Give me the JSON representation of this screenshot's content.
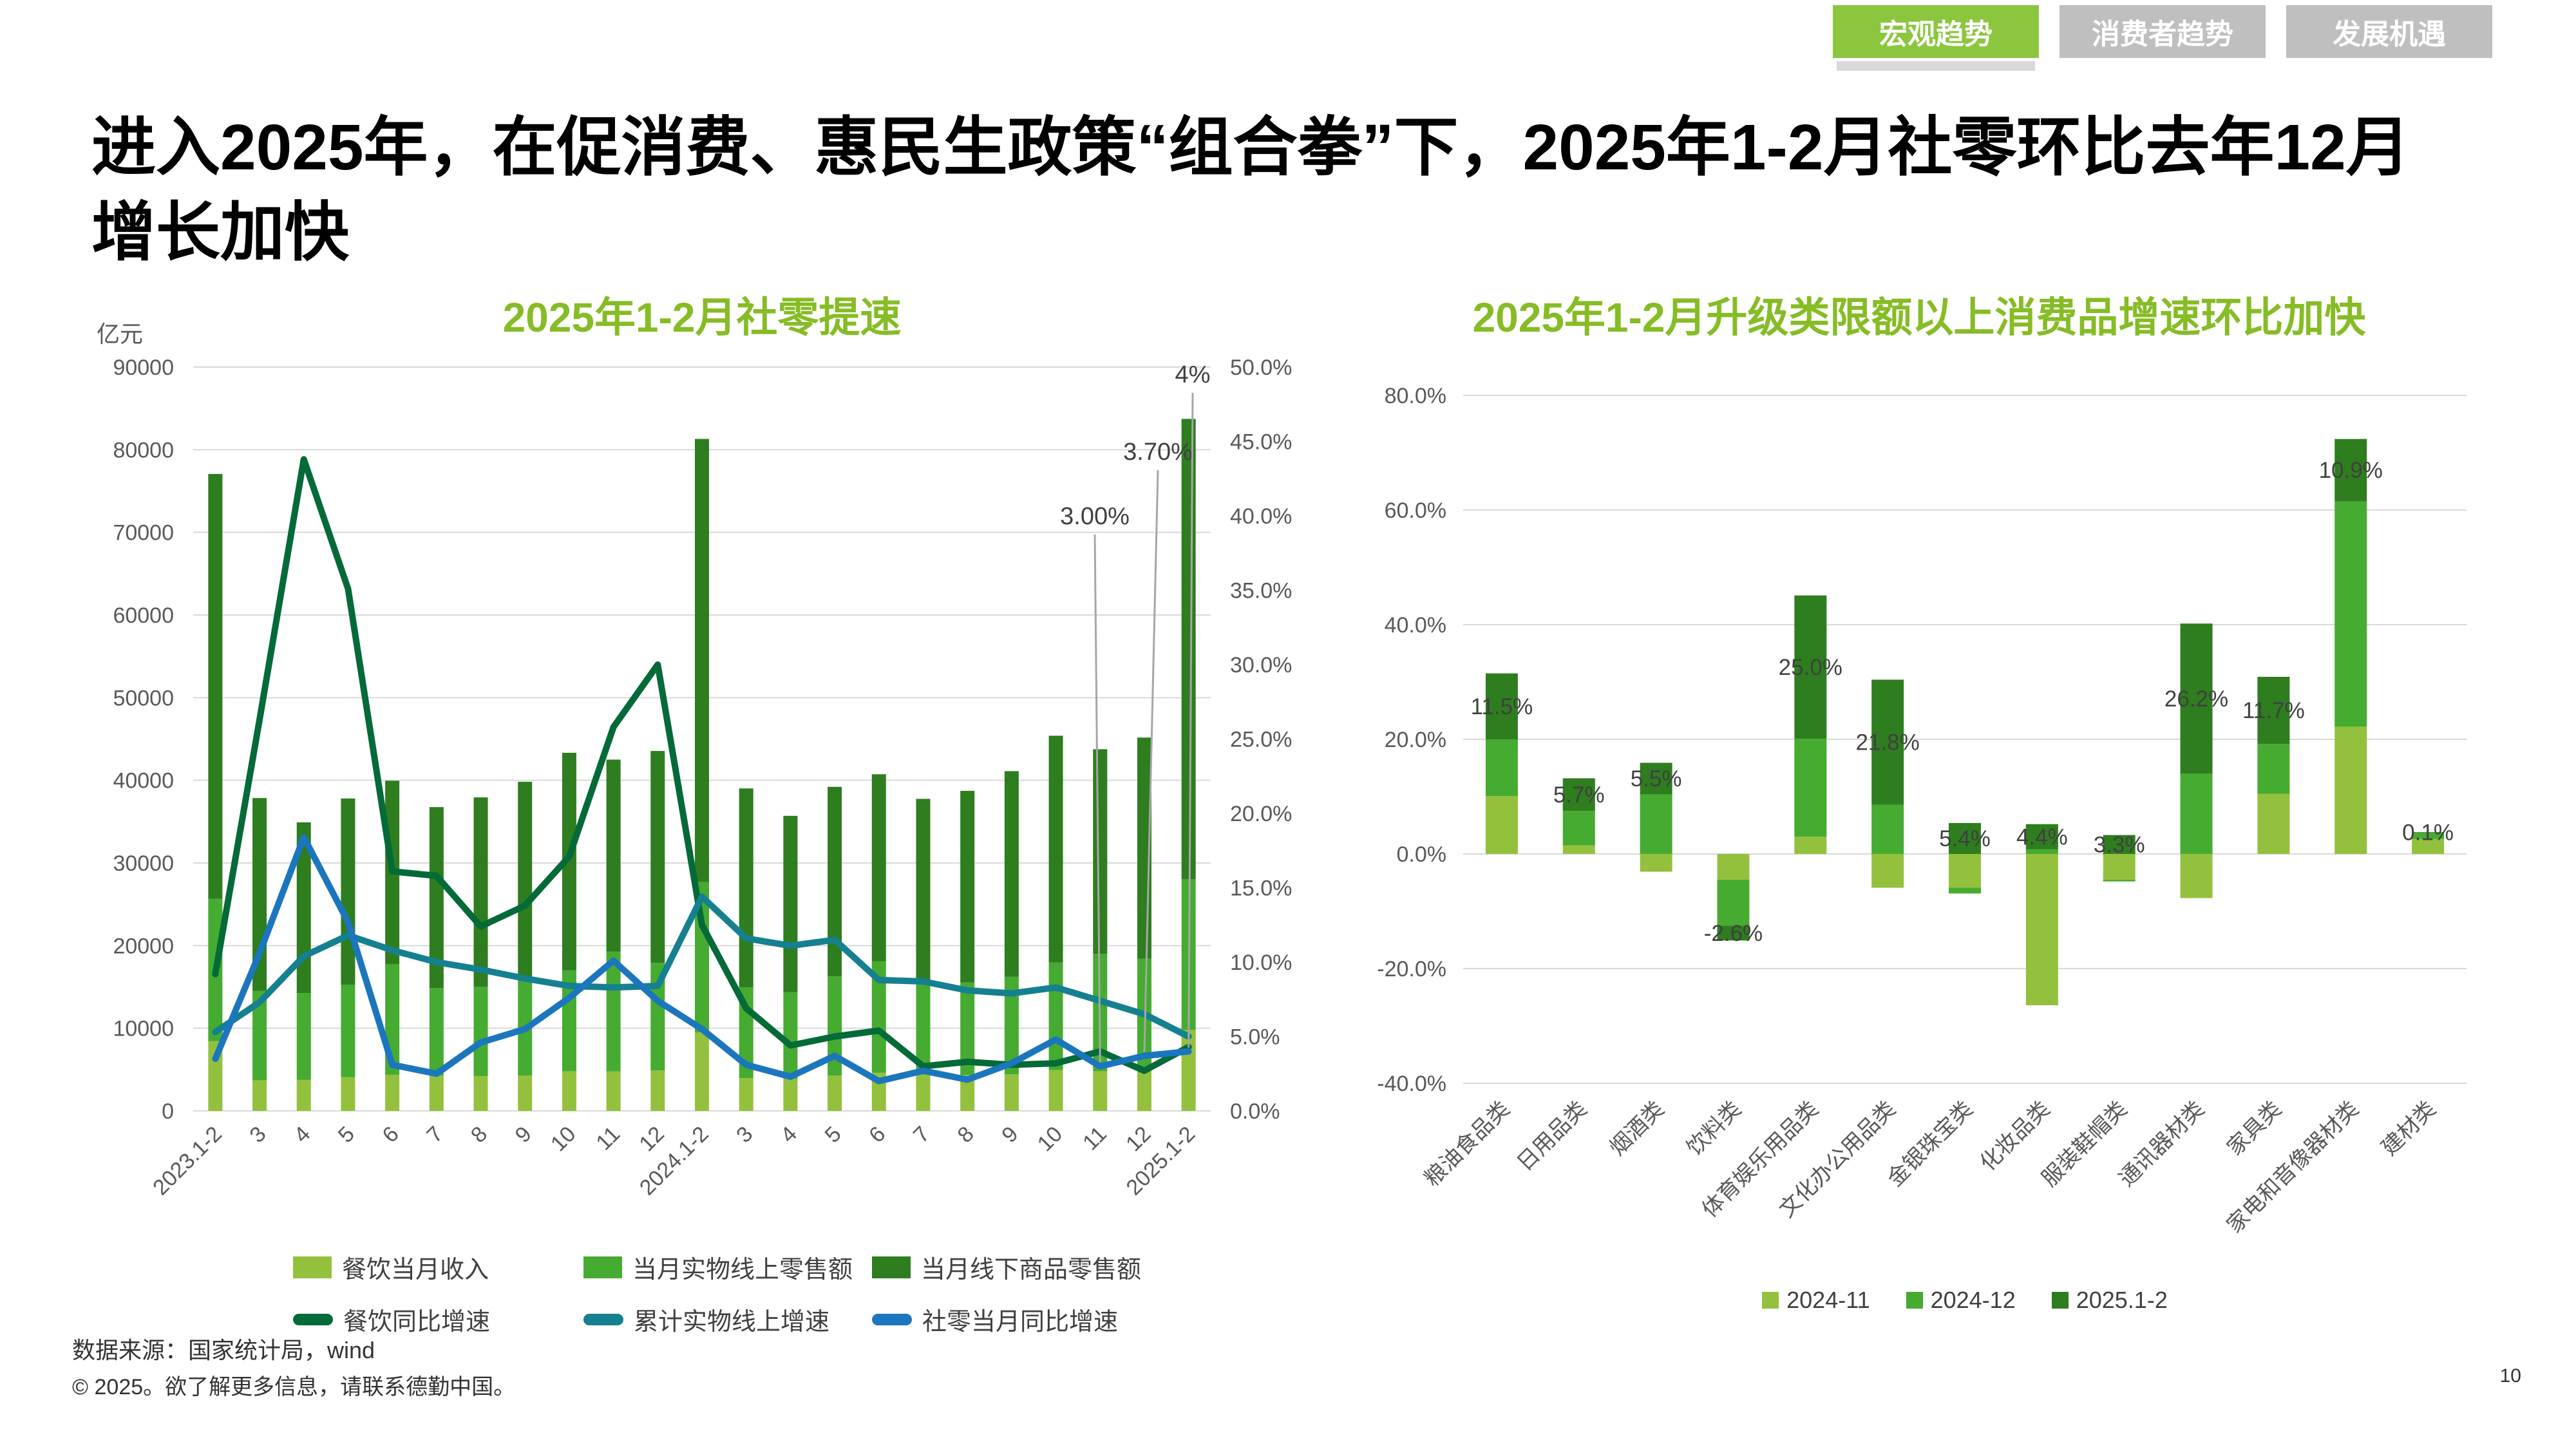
{
  "page_title": "进入2025年，在促消费、惠民生政策“组合拳”下，2025年1-2月社零环比去年12月增长加快",
  "tabs": [
    {
      "label": "宏观趋势",
      "active": true
    },
    {
      "label": "消费者趋势",
      "active": false
    },
    {
      "label": "发展机遇",
      "active": false
    }
  ],
  "footer": {
    "source": "数据来源：国家统计局，wind",
    "copyright": "© 2025。欲了解更多信息，请联系德勤中国。",
    "page_number": "10"
  },
  "colors": {
    "tab_active_bg": "#8CC63F",
    "tab_inactive_bg": "#BFBFBF",
    "tab_text": "#FFFFFF",
    "chart_title_green": "#86BC25",
    "axis_text": "#595959",
    "label_text": "#404040",
    "gridline": "#D9D9D9",
    "leader_line": "#A6A6A6",
    "bar_light_green": "#93C13D",
    "bar_mid_green": "#46AB31",
    "bar_dark_green": "#2E7D1F",
    "line_deep_green": "#046A38",
    "line_teal": "#15808F",
    "line_blue": "#1B76BE"
  },
  "chart_data": [
    {
      "type": "bar-line-combo",
      "title": "2025年1-2月社零提速",
      "unit_label": "亿元",
      "categories": [
        "2023.1-2",
        "3",
        "4",
        "5",
        "6",
        "7",
        "8",
        "9",
        "10",
        "11",
        "12",
        "2024.1-2",
        "3",
        "4",
        "5",
        "6",
        "7",
        "8",
        "9",
        "10",
        "11",
        "12",
        "2025.1-2"
      ],
      "left_axis": {
        "min": 0,
        "max": 90000,
        "step": 10000
      },
      "right_axis": {
        "min": 0,
        "max": 50,
        "step": 5,
        "suffix": "%"
      },
      "bar_series": [
        {
          "name": "餐饮当月收入",
          "color": "bar_light_green",
          "values": [
            8429,
            3707,
            3751,
            4070,
            4371,
            4277,
            4212,
            4287,
            4800,
            4780,
            4898,
            9481,
            3964,
            3869,
            4274,
            4609,
            4403,
            4351,
            4420,
            4952,
            4802,
            5228,
            9792
          ]
        },
        {
          "name": "当月实物线上零售额",
          "color": "bar_mid_green",
          "values": [
            17251,
            10800,
            10500,
            11200,
            13400,
            10600,
            10800,
            11600,
            12200,
            14500,
            13000,
            18206,
            11000,
            10500,
            12000,
            13500,
            10900,
            11200,
            11800,
            13000,
            14200,
            13200,
            18233
          ]
        },
        {
          "name": "当月线下商品零售额",
          "color": "bar_dark_green",
          "values": [
            51387,
            23348,
            20659,
            22533,
            22180,
            21884,
            22921,
            23939,
            26333,
            23225,
            25652,
            53620,
            24056,
            21330,
            22937,
            22623,
            22454,
            23175,
            24892,
            27444,
            24761,
            26744,
            55706
          ]
        }
      ],
      "line_series": [
        {
          "name": "餐饮同比增速",
          "color": "line_deep_green",
          "values": [
            9.2,
            26.3,
            43.8,
            35.1,
            16.1,
            15.8,
            12.4,
            13.8,
            17.1,
            25.8,
            30.0,
            12.5,
            6.9,
            4.4,
            5.0,
            5.4,
            3.0,
            3.3,
            3.1,
            3.2,
            4.0,
            2.7,
            4.3
          ]
        },
        {
          "name": "累计实物线上增速",
          "color": "line_teal",
          "values": [
            5.3,
            7.3,
            10.4,
            11.8,
            10.8,
            10.0,
            9.5,
            8.9,
            8.4,
            8.3,
            8.4,
            14.4,
            11.6,
            11.1,
            11.5,
            8.8,
            8.7,
            8.1,
            7.9,
            8.3,
            7.4,
            6.5,
            5.0
          ]
        },
        {
          "name": "社零当月同比增速",
          "color": "line_blue",
          "values": [
            3.5,
            10.6,
            18.4,
            12.7,
            3.1,
            2.5,
            4.6,
            5.5,
            7.6,
            10.1,
            7.4,
            5.5,
            3.1,
            2.3,
            3.7,
            2.0,
            2.7,
            2.1,
            3.2,
            4.8,
            3.0,
            3.7,
            4.0
          ]
        }
      ],
      "annotations": [
        {
          "label": "3.00%",
          "category_index": 20,
          "series": "社零当月同比增速"
        },
        {
          "label": "3.70%",
          "category_index": 21,
          "series": "社零当月同比增速"
        },
        {
          "label": "4%",
          "category_index": 22,
          "series": "社零当月同比增速"
        }
      ]
    },
    {
      "type": "stacked-bar",
      "title": "2025年1-2月升级类限额以上消费品增速环比加快",
      "categories": [
        "粮油食品类",
        "日用品类",
        "烟酒类",
        "饮料类",
        "体育娱乐用品类",
        "文化办公用品类",
        "金银珠宝类",
        "化妆品类",
        "服装鞋帽类",
        "通讯器材类",
        "家具类",
        "家电和音像器材类",
        "建材类"
      ],
      "y_axis": {
        "min": -40,
        "max": 80,
        "step": 20,
        "suffix": "%"
      },
      "series": [
        {
          "name": "2024-11",
          "color": "bar_light_green",
          "values": [
            10.1,
            1.5,
            -3.1,
            -4.5,
            3.0,
            -5.9,
            -5.9,
            -26.4,
            -4.5,
            -7.7,
            10.5,
            22.2,
            2.6
          ]
        },
        {
          "name": "2024-12",
          "color": "bar_mid_green",
          "values": [
            9.9,
            6.0,
            10.4,
            -8.0,
            17.1,
            8.6,
            -1.0,
            0.8,
            -0.3,
            14.0,
            8.7,
            39.3,
            1.1
          ]
        },
        {
          "name": "2025.1-2",
          "color": "bar_dark_green",
          "values": [
            11.5,
            5.7,
            5.5,
            -2.6,
            25.0,
            21.8,
            5.4,
            4.4,
            3.3,
            26.2,
            11.7,
            10.9,
            0.1
          ]
        }
      ],
      "data_labels": [
        "11.5%",
        "5.7%",
        "5.5%",
        "-2.6%",
        "25.0%",
        "21.8%",
        "5.4%",
        "4.4%",
        "3.3%",
        "26.2%",
        "11.7%",
        "10.9%",
        "0.1%"
      ],
      "legend_position": "bottom"
    }
  ]
}
